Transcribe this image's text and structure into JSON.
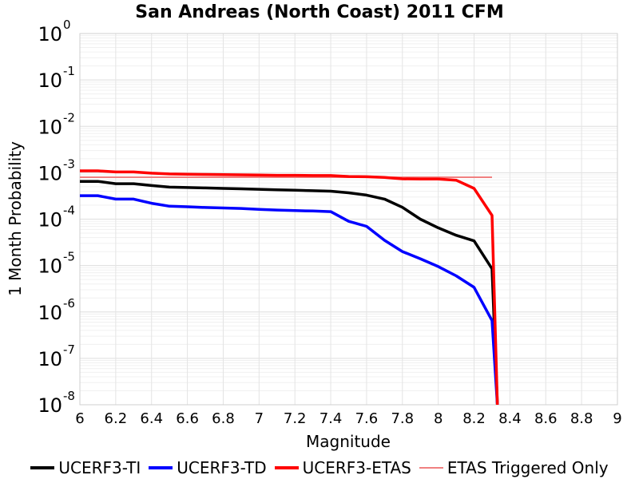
{
  "chart_data": {
    "type": "line",
    "title": "San Andreas (North Coast) 2011 CFM",
    "xlabel": "Magnitude",
    "ylabel": "1 Month Probability",
    "xlim": [
      6,
      9
    ],
    "ylim": [
      1e-08,
      1
    ],
    "yscale": "log",
    "grid": true,
    "legend_position": "bottom",
    "x_ticks": [
      "6",
      "6.2",
      "6.4",
      "6.6",
      "6.8",
      "7",
      "7.2",
      "7.4",
      "7.6",
      "7.8",
      "8",
      "8.2",
      "8.4",
      "8.6",
      "8.8",
      "9"
    ],
    "y_ticks": [
      {
        "base": "10",
        "exp": "0",
        "value": 1
      },
      {
        "base": "10",
        "exp": "-1",
        "value": 0.1
      },
      {
        "base": "10",
        "exp": "-2",
        "value": 0.01
      },
      {
        "base": "10",
        "exp": "-3",
        "value": 0.001
      },
      {
        "base": "10",
        "exp": "-4",
        "value": 0.0001
      },
      {
        "base": "10",
        "exp": "-5",
        "value": 1e-05
      },
      {
        "base": "10",
        "exp": "-6",
        "value": 1e-06
      },
      {
        "base": "10",
        "exp": "-7",
        "value": 1e-07
      },
      {
        "base": "10",
        "exp": "-8",
        "value": 1e-08
      }
    ],
    "series": [
      {
        "name": "UCERF3-TI",
        "color": "#000000",
        "x": [
          6.0,
          6.1,
          6.2,
          6.3,
          6.4,
          6.5,
          6.6,
          6.7,
          6.8,
          6.9,
          7.0,
          7.1,
          7.2,
          7.3,
          7.4,
          7.5,
          7.6,
          7.7,
          7.8,
          7.9,
          8.0,
          8.1,
          8.2,
          8.3,
          8.33
        ],
        "y": [
          0.00065,
          0.00065,
          0.00058,
          0.00058,
          0.00053,
          0.00049,
          0.00048,
          0.00047,
          0.00046,
          0.00045,
          0.00044,
          0.00043,
          0.00042,
          0.00041,
          0.0004,
          0.00037,
          0.00033,
          0.00027,
          0.00018,
          0.0001,
          6.5e-05,
          4.5e-05,
          3.4e-05,
          8.5e-06,
          1e-08
        ]
      },
      {
        "name": "UCERF3-TD",
        "color": "#0000ff",
        "x": [
          6.0,
          6.1,
          6.2,
          6.3,
          6.4,
          6.5,
          6.6,
          6.7,
          6.8,
          6.9,
          7.0,
          7.1,
          7.2,
          7.3,
          7.4,
          7.5,
          7.6,
          7.7,
          7.8,
          7.9,
          8.0,
          8.1,
          8.2,
          8.3,
          8.33
        ],
        "y": [
          0.00032,
          0.00032,
          0.00027,
          0.00027,
          0.00022,
          0.00019,
          0.000185,
          0.000178,
          0.000174,
          0.00017,
          0.000162,
          0.000157,
          0.000153,
          0.00015,
          0.000145,
          9e-05,
          7e-05,
          3.5e-05,
          2e-05,
          1.4e-05,
          9.5e-06,
          6e-06,
          3.4e-06,
          6.5e-07,
          1e-08
        ]
      },
      {
        "name": "UCERF3-ETAS",
        "color": "#ff0000",
        "x": [
          6.0,
          6.1,
          6.2,
          6.3,
          6.4,
          6.5,
          6.6,
          6.7,
          6.8,
          6.9,
          7.0,
          7.1,
          7.2,
          7.3,
          7.4,
          7.5,
          7.6,
          7.7,
          7.8,
          7.9,
          8.0,
          8.1,
          8.2,
          8.3,
          8.33
        ],
        "y": [
          0.0011,
          0.0011,
          0.00104,
          0.00104,
          0.00098,
          0.00094,
          0.00093,
          0.00092,
          0.00091,
          0.0009,
          0.00089,
          0.00088,
          0.00088,
          0.00087,
          0.00087,
          0.00083,
          0.00082,
          0.00079,
          0.00074,
          0.00073,
          0.00073,
          0.00069,
          0.00046,
          0.00012,
          1e-08
        ]
      },
      {
        "name": "ETAS Triggered Only",
        "color": "#f08080",
        "x": [
          6.0,
          6.1,
          6.2,
          6.3,
          6.4,
          6.5,
          6.6,
          6.7,
          6.8,
          6.9,
          7.0,
          7.1,
          7.2,
          7.3,
          7.4,
          7.5,
          7.6,
          7.7,
          7.8,
          7.9,
          8.0,
          8.1,
          8.2,
          8.3
        ],
        "y": [
          0.0008,
          0.0008,
          0.0008,
          0.0008,
          0.0008,
          0.0008,
          0.0008,
          0.0008,
          0.0008,
          0.0008,
          0.0008,
          0.0008,
          0.0008,
          0.0008,
          0.0008,
          0.0008,
          0.0008,
          0.0008,
          0.0008,
          0.0008,
          0.0008,
          0.0008,
          0.0008,
          0.0008
        ]
      }
    ]
  }
}
